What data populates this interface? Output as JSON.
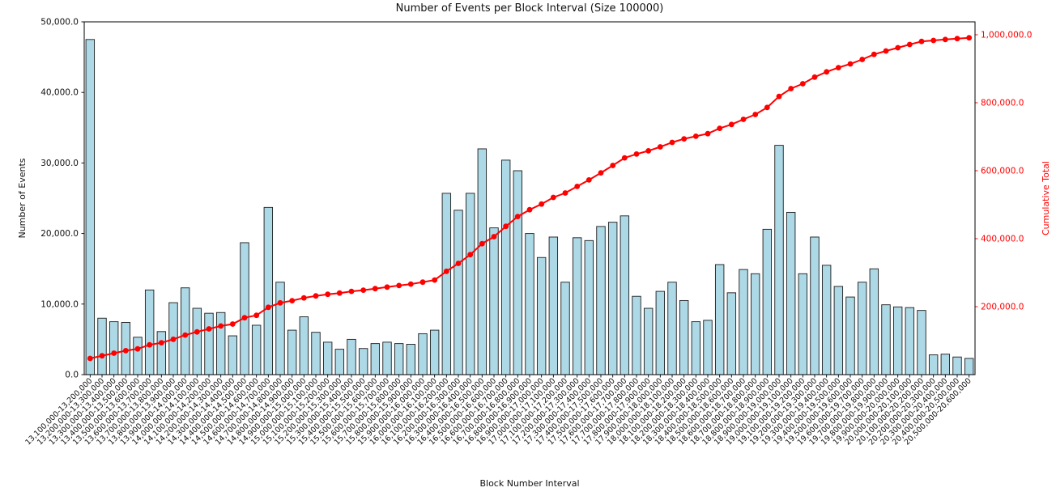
{
  "figure": {
    "title": "Number of Events per Block Interval (Size 100000)",
    "xlabel": "Block Number Interval",
    "ylabel_left": "Number of Events",
    "ylabel_right": "Cumulative Total"
  },
  "chart_data": {
    "type": "bar",
    "title": "Number of Events per Block Interval (Size 100000)",
    "xlabel": "Block Number Interval",
    "ylabel": "Number of Events",
    "ylabel_right": "Cumulative Total",
    "grid": false,
    "legend": "none",
    "ylim_left": [
      0,
      50000
    ],
    "ylim_right": [
      0,
      1038000
    ],
    "bar_color": "#ADD8E6",
    "bar_edge_color": "#1c1c1c",
    "line_color": "#FF0000",
    "yticks_left": {
      "values": [
        0,
        10000,
        20000,
        30000,
        40000,
        50000
      ],
      "labels": [
        "0.0",
        "10,000.0",
        "20,000.0",
        "30,000.0",
        "40,000.0",
        "50,000.0"
      ]
    },
    "yticks_right": {
      "values": [
        200000,
        400000,
        600000,
        800000,
        1000000
      ],
      "labels": [
        "200,000.0",
        "400,000.0",
        "600,000.0",
        "800,000.0",
        "1,000,000.0"
      ]
    },
    "categories": [
      "13,100,000-13,200,000",
      "13,200,000-13,300,000",
      "13,300,000-13,400,000",
      "13,400,000-13,500,000",
      "13,500,000-13,600,000",
      "13,600,000-13,700,000",
      "13,700,000-13,800,000",
      "13,800,000-13,900,000",
      "13,900,000-14,000,000",
      "14,000,000-14,100,000",
      "14,100,000-14,200,000",
      "14,200,000-14,300,000",
      "14,300,000-14,400,000",
      "14,400,000-14,500,000",
      "14,500,000-14,600,000",
      "14,600,000-14,700,000",
      "14,700,000-14,800,000",
      "14,800,000-14,900,000",
      "14,900,000-15,000,000",
      "15,000,000-15,100,000",
      "15,100,000-15,200,000",
      "15,200,000-15,300,000",
      "15,300,000-15,400,000",
      "15,400,000-15,500,000",
      "15,500,000-15,600,000",
      "15,600,000-15,700,000",
      "15,700,000-15,800,000",
      "15,800,000-15,900,000",
      "15,900,000-16,000,000",
      "16,000,000-16,100,000",
      "16,100,000-16,200,000",
      "16,200,000-16,300,000",
      "16,300,000-16,400,000",
      "16,400,000-16,500,000",
      "16,500,000-16,600,000",
      "16,600,000-16,700,000",
      "16,700,000-16,800,000",
      "16,800,000-16,900,000",
      "16,900,000-17,000,000",
      "17,000,000-17,100,000",
      "17,100,000-17,200,000",
      "17,200,000-17,300,000",
      "17,300,000-17,400,000",
      "17,400,000-17,500,000",
      "17,500,000-17,600,000",
      "17,600,000-17,700,000",
      "17,700,000-17,800,000",
      "17,800,000-17,900,000",
      "17,900,000-18,000,000",
      "18,000,000-18,100,000",
      "18,100,000-18,200,000",
      "18,200,000-18,300,000",
      "18,300,000-18,400,000",
      "18,400,000-18,500,000",
      "18,500,000-18,600,000",
      "18,600,000-18,700,000",
      "18,700,000-18,800,000",
      "18,800,000-18,900,000",
      "18,900,000-19,000,000",
      "19,000,000-19,100,000",
      "19,100,000-19,200,000",
      "19,200,000-19,300,000",
      "19,300,000-19,400,000",
      "19,400,000-19,500,000",
      "19,500,000-19,600,000",
      "19,600,000-19,700,000",
      "19,700,000-19,800,000",
      "19,800,000-19,900,000",
      "19,900,000-20,000,000",
      "20,000,000-20,100,000",
      "20,100,000-20,200,000",
      "20,200,000-20,300,000",
      "20,300,000-20,400,000",
      "20,400,000-20,500,000",
      "20,500,000-20,600,000"
    ],
    "series": [
      {
        "name": "Number of Events",
        "type": "bar",
        "axis": "left",
        "values": [
          47500,
          8000,
          7500,
          7400,
          5300,
          12000,
          6100,
          10200,
          12300,
          9400,
          8700,
          8800,
          5500,
          18700,
          7000,
          23700,
          13100,
          6300,
          8200,
          6000,
          4600,
          3600,
          5000,
          3700,
          4400,
          4600,
          4400,
          4300,
          5800,
          6300,
          25700,
          23300,
          25700,
          32000,
          20800,
          30400,
          28900,
          20000,
          16600,
          19500,
          13100,
          19400,
          19000,
          21000,
          21600,
          22500,
          11100,
          9400,
          11800,
          13100,
          10500,
          7500,
          7700,
          15600,
          11600,
          14900,
          14300,
          20600,
          32500,
          23000,
          14300,
          19500,
          15500,
          12500,
          11000,
          13100,
          15000,
          9900,
          9600,
          9500,
          9100,
          2800,
          2900,
          2500,
          2300
        ]
      },
      {
        "name": "Cumulative Total",
        "type": "line",
        "axis": "right",
        "values": [
          47500,
          55500,
          63000,
          70400,
          75700,
          87700,
          93800,
          104000,
          116300,
          125700,
          134400,
          143200,
          148700,
          167400,
          174400,
          198100,
          211200,
          217500,
          225700,
          231700,
          236300,
          239900,
          244900,
          248600,
          253000,
          257600,
          262000,
          266300,
          272100,
          278400,
          304100,
          327400,
          353100,
          385100,
          405900,
          436300,
          465200,
          485200,
          501800,
          521300,
          534400,
          553800,
          572800,
          593800,
          615400,
          637900,
          649000,
          658400,
          670200,
          683300,
          693800,
          701300,
          709000,
          724600,
          736200,
          751100,
          765400,
          786000,
          818500,
          841500,
          855800,
          875300,
          890800,
          903300,
          914300,
          927400,
          942400,
          952300,
          961900,
          971400,
          980500,
          983300,
          986200,
          988700,
          991000
        ]
      }
    ]
  }
}
